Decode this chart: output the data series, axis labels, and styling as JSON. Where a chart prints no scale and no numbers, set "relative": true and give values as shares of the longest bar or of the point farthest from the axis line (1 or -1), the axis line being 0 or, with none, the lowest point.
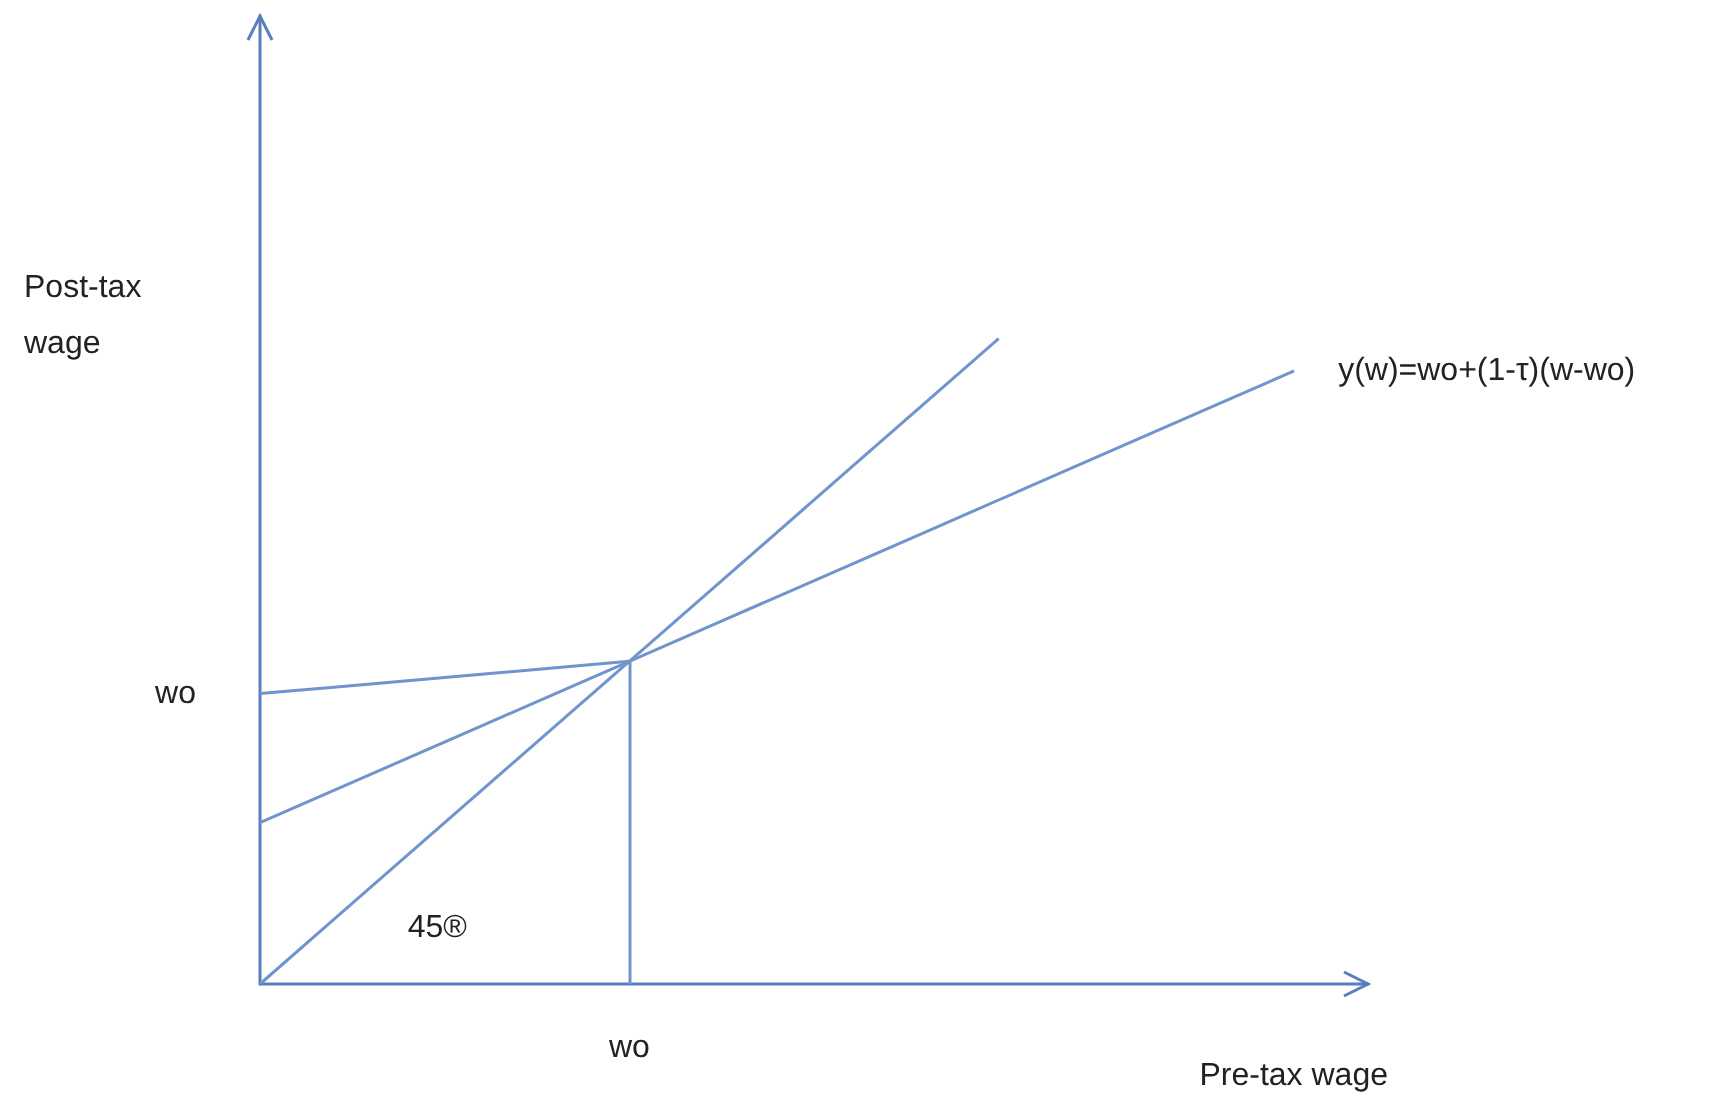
{
  "chart_data": {
    "type": "line",
    "relative": true,
    "xlabel": "Pre-tax wage",
    "ylabel": "Post-tax wage",
    "grid": false,
    "legend": false,
    "marker": "none",
    "line_style": "solid",
    "categories": [
      null,
      null,
      null,
      null,
      null,
      null,
      null,
      null,
      null,
      null,
      null,
      null,
      null,
      null,
      null,
      null
    ],
    "series": [
      {
        "color": "#7094cc",
        "values": [
          0,
          0.1,
          0.2,
          0.3,
          0.4,
          0.5,
          0.6,
          0.7,
          0.8,
          0.9,
          1,
          null,
          null,
          null,
          null,
          null
        ]
      },
      {
        "name": "y(w)=wo+(1-τ)(w-wo)",
        "color": "#7094cc",
        "values": [
          0.25,
          0.3,
          0.35,
          0.4,
          0.45,
          0.5,
          0.55,
          0.6,
          0.65,
          0.7,
          0.75,
          0.8,
          0.85,
          0.9,
          0.95,
          null
        ]
      },
      {
        "color": "#7094cc",
        "values": [
          0.45,
          0.46,
          0.47,
          0.48,
          0.49,
          0.5,
          null,
          null,
          null,
          null,
          null,
          null,
          null,
          null,
          null,
          null
        ]
      }
    ],
    "annotations": [
      "wo",
      "wo",
      "45®"
    ]
  }
}
